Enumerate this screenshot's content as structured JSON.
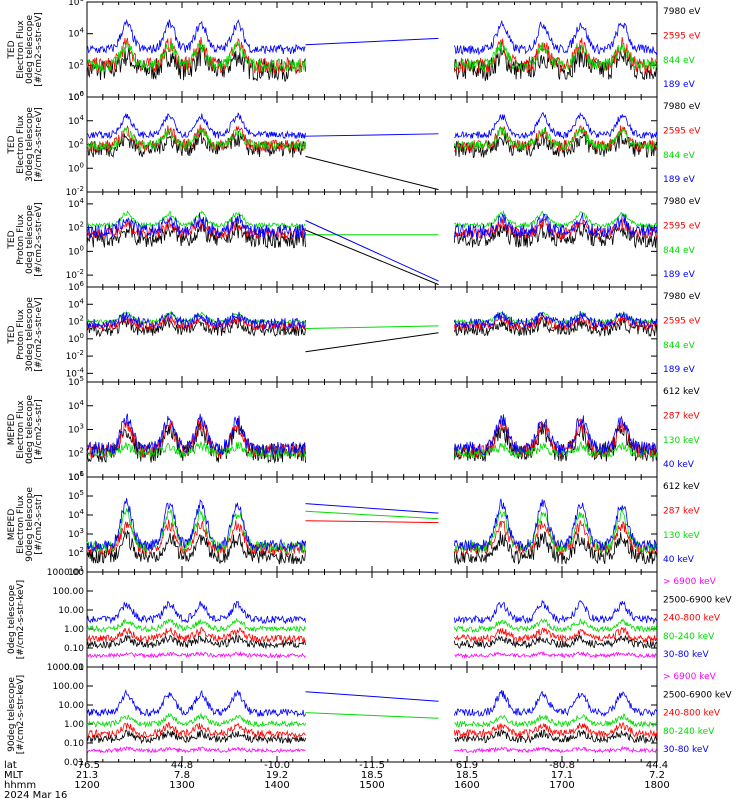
{
  "chart_data": [
    {
      "type": "line",
      "ylabel_lines": [
        "TED",
        "Electron Flux",
        "0deg telescope",
        "[#/cm2-s-str-eV]"
      ],
      "yscale": "log",
      "ylim_exp": [
        0,
        6
      ],
      "ytick_exps": [
        0,
        2,
        4,
        6
      ],
      "series": [
        {
          "name": "7980 eV",
          "color": "#000000",
          "base": 1.7,
          "amp": 0.9,
          "noise": 0.7
        },
        {
          "name": "2595 eV",
          "color": "#ff0000",
          "base": 2.0,
          "amp": 1.3,
          "noise": 0.5
        },
        {
          "name": "844 eV",
          "color": "#00dd00",
          "base": 2.0,
          "amp": 1.2,
          "noise": 0.4
        },
        {
          "name": "189 eV",
          "color": "#0000ff",
          "base": 3.0,
          "amp": 1.6,
          "noise": 0.3
        }
      ],
      "gap_lines": [
        {
          "color": "#0000ff",
          "from": 3.3,
          "to": 3.7
        }
      ]
    },
    {
      "type": "line",
      "ylabel_lines": [
        "TED",
        "Electron Flux",
        "30deg telescope",
        "[#/cm2-s-str-eV]"
      ],
      "yscale": "log",
      "ylim_exp": [
        -2,
        6
      ],
      "ytick_exps": [
        -2,
        0,
        2,
        4,
        6
      ],
      "series": [
        {
          "name": "7980 eV",
          "color": "#000000",
          "base": 1.6,
          "amp": 0.9,
          "noise": 0.7
        },
        {
          "name": "2595 eV",
          "color": "#ff0000",
          "base": 1.9,
          "amp": 1.3,
          "noise": 0.5
        },
        {
          "name": "844 eV",
          "color": "#00dd00",
          "base": 1.9,
          "amp": 1.2,
          "noise": 0.4
        },
        {
          "name": "189 eV",
          "color": "#0000ff",
          "base": 2.8,
          "amp": 1.6,
          "noise": 0.3
        }
      ],
      "gap_lines": [
        {
          "color": "#0000ff",
          "from": 2.7,
          "to": 2.9
        },
        {
          "color": "#000000",
          "from": 1.0,
          "to": -1.8
        }
      ]
    },
    {
      "type": "line",
      "ylabel_lines": [
        "TED",
        "Proton Flux",
        "0deg telescope",
        "[#/cm2-s-str-eV]"
      ],
      "yscale": "log",
      "ylim_exp": [
        -3,
        5
      ],
      "ytick_exps": [
        -2,
        0,
        2,
        4
      ],
      "series": [
        {
          "name": "7980 eV",
          "color": "#000000",
          "base": 1.0,
          "amp": 0.8,
          "noise": 0.7
        },
        {
          "name": "2595 eV",
          "color": "#ff0000",
          "base": 1.5,
          "amp": 0.8,
          "noise": 0.5
        },
        {
          "name": "844 eV",
          "color": "#00dd00",
          "base": 2.2,
          "amp": 1.0,
          "noise": 0.2
        },
        {
          "name": "189 eV",
          "color": "#0000ff",
          "base": 1.7,
          "amp": 1.0,
          "noise": 0.6
        }
      ],
      "gap_lines": [
        {
          "color": "#00dd00",
          "from": 1.4,
          "to": 1.4
        },
        {
          "color": "#0000ff",
          "from": 2.6,
          "to": -2.5
        },
        {
          "color": "#000000",
          "from": 1.8,
          "to": -2.8
        }
      ]
    },
    {
      "type": "line",
      "ylabel_lines": [
        "TED",
        "Proton Flux",
        "30deg telescope",
        "[#/cm2-s-str-eV]"
      ],
      "yscale": "log",
      "ylim_exp": [
        -5,
        6
      ],
      "ytick_exps": [
        -4,
        -2,
        0,
        2,
        4,
        6
      ],
      "series": [
        {
          "name": "7980 eV",
          "color": "#000000",
          "base": 1.0,
          "amp": 0.8,
          "noise": 0.7
        },
        {
          "name": "2595 eV",
          "color": "#ff0000",
          "base": 1.5,
          "amp": 0.8,
          "noise": 0.5
        },
        {
          "name": "844 eV",
          "color": "#00dd00",
          "base": 2.0,
          "amp": 0.9,
          "noise": 0.2
        },
        {
          "name": "189 eV",
          "color": "#0000ff",
          "base": 1.8,
          "amp": 0.9,
          "noise": 0.6
        }
      ],
      "gap_lines": [
        {
          "color": "#00dd00",
          "from": 1.2,
          "to": 1.5
        },
        {
          "color": "#000000",
          "from": -1.5,
          "to": 0.7
        }
      ]
    },
    {
      "type": "line",
      "ylabel_lines": [
        "MEPED",
        "Electron Flux",
        "0deg telescope",
        "[#/cm2-s-str]"
      ],
      "yscale": "log",
      "ylim_exp": [
        1,
        5
      ],
      "ytick_exps": [
        1,
        2,
        3,
        4,
        5
      ],
      "series": [
        {
          "name": "612 keV",
          "color": "#000000",
          "base": 2.0,
          "amp": 1.0,
          "noise": 0.4
        },
        {
          "name": "287 keV",
          "color": "#ff0000",
          "base": 2.1,
          "amp": 1.1,
          "noise": 0.3
        },
        {
          "name": "130 keV",
          "color": "#00dd00",
          "base": 2.0,
          "amp": 0.3,
          "noise": 0.2
        },
        {
          "name": "40 keV",
          "color": "#0000ff",
          "base": 2.2,
          "amp": 1.2,
          "noise": 0.3
        }
      ],
      "gap_lines": []
    },
    {
      "type": "line",
      "ylabel_lines": [
        "MEPED",
        "Electron Flux",
        "90deg telescope",
        "[#/cm2-s-str]"
      ],
      "yscale": "log",
      "ylim_exp": [
        1,
        6
      ],
      "ytick_exps": [
        1,
        2,
        3,
        4,
        5,
        6
      ],
      "series": [
        {
          "name": "612 keV",
          "color": "#000000",
          "base": 1.8,
          "amp": 1.0,
          "noise": 0.4
        },
        {
          "name": "287 keV",
          "color": "#ff0000",
          "base": 2.2,
          "amp": 1.3,
          "noise": 0.3
        },
        {
          "name": "130 keV",
          "color": "#00dd00",
          "base": 2.3,
          "amp": 1.8,
          "noise": 0.3
        },
        {
          "name": "40 keV",
          "color": "#0000ff",
          "base": 2.4,
          "amp": 2.2,
          "noise": 0.3
        }
      ],
      "gap_lines": [
        {
          "color": "#0000ff",
          "from": 4.6,
          "to": 4.1
        },
        {
          "color": "#00dd00",
          "from": 4.2,
          "to": 3.8
        },
        {
          "color": "#ff0000",
          "from": 3.7,
          "to": 3.6
        }
      ]
    },
    {
      "type": "line",
      "ylabel_lines": [
        "0deg telescope",
        "[#/cm2-s-str-keV]"
      ],
      "yscale": "log",
      "ylim_exp": [
        -2,
        3
      ],
      "ytick_exps": [
        -2,
        -1,
        0,
        1,
        2,
        3
      ],
      "ytick_labels": [
        "0.01",
        "0.10",
        "1.00",
        "10.00",
        "100.00",
        "1000.00"
      ],
      "series": [
        {
          "name": "> 6900 keV",
          "color": "#ff00ff",
          "base": -1.4,
          "amp": 0.1,
          "noise": 0.1
        },
        {
          "name": "2500-6900 keV",
          "color": "#000000",
          "base": -0.8,
          "amp": 0.3,
          "noise": 0.2
        },
        {
          "name": "240-800 keV",
          "color": "#ff0000",
          "base": -0.5,
          "amp": 0.4,
          "noise": 0.2
        },
        {
          "name": "80-240 keV",
          "color": "#00dd00",
          "base": 0.0,
          "amp": 0.4,
          "noise": 0.15
        },
        {
          "name": "30-80 keV",
          "color": "#0000ff",
          "base": 0.5,
          "amp": 0.8,
          "noise": 0.2
        }
      ],
      "gap_lines": []
    },
    {
      "type": "line",
      "ylabel_lines": [
        "90deg telescope",
        "[#/cm2-s-str-keV]"
      ],
      "yscale": "log",
      "ylim_exp": [
        -2,
        3
      ],
      "ytick_exps": [
        -2,
        -1,
        0,
        1,
        2,
        3
      ],
      "ytick_labels": [
        "0.01",
        "0.10",
        "1.00",
        "10.00",
        "100.00",
        "1000.00"
      ],
      "series": [
        {
          "name": "> 6900 keV",
          "color": "#ff00ff",
          "base": -1.4,
          "amp": 0.1,
          "noise": 0.1
        },
        {
          "name": "2500-6900 keV",
          "color": "#000000",
          "base": -0.8,
          "amp": 0.3,
          "noise": 0.2
        },
        {
          "name": "240-800 keV",
          "color": "#ff0000",
          "base": -0.5,
          "amp": 0.4,
          "noise": 0.2
        },
        {
          "name": "80-240 keV",
          "color": "#00dd00",
          "base": 0.0,
          "amp": 0.4,
          "noise": 0.15
        },
        {
          "name": "30-80 keV",
          "color": "#0000ff",
          "base": 0.6,
          "amp": 1.0,
          "noise": 0.2
        }
      ],
      "gap_lines": [
        {
          "color": "#0000ff",
          "from": 1.7,
          "to": 1.2
        },
        {
          "color": "#00dd00",
          "from": 0.6,
          "to": 0.3
        }
      ]
    }
  ],
  "x_axis": {
    "hhmm": [
      "1200",
      "1300",
      "1400",
      "1500",
      "1600",
      "1700",
      "1800"
    ],
    "lat": [
      "-76.5",
      "44.8",
      "-10.0",
      "-11.5",
      "61.9",
      "-80.8",
      "44.4"
    ],
    "mlt": [
      "21.3",
      "7.8",
      "19.2",
      "18.5",
      "18.5",
      "17.1",
      "7.2"
    ],
    "row_labels": [
      "lat",
      "MLT",
      "hhmm"
    ],
    "date": "2024 Mar 16",
    "gap_start": "1418",
    "gap_end": "1552",
    "activity_peaks": [
      "1225",
      "1252",
      "1312",
      "1335",
      "1622",
      "1648",
      "1712",
      "1738"
    ]
  }
}
